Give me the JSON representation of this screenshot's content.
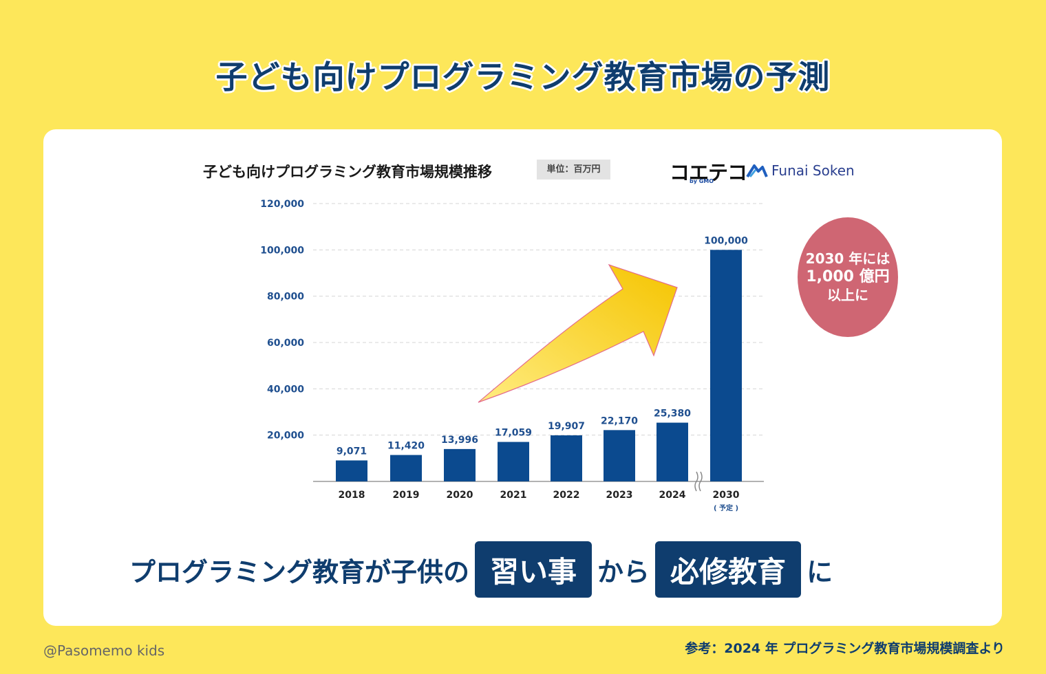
{
  "main_title": "子ども向けプログラミング教育市場の予測",
  "chart_title": "子ども向けプログラミング教育市場規模推移",
  "unit_label": "単位：百万円",
  "logos": {
    "koetechi": "コエテコ",
    "koetechi_sub": "by GMO",
    "funai": "Funai Soken"
  },
  "badge": {
    "line1": "2030 年には",
    "line2": "1,000 億円",
    "line3": "以上に"
  },
  "headline": {
    "part1": "プログラミング教育が子供の",
    "box1": "習い事",
    "part2": "から",
    "box2": "必修教育",
    "part3": "に"
  },
  "footer": {
    "credit": "@Pasomemo kids",
    "source": "参考：2024 年 プログラミング教育市場規模調査より"
  },
  "chart_data": {
    "type": "bar",
    "categories": [
      "2018",
      "2019",
      "2020",
      "2021",
      "2022",
      "2023",
      "2024",
      "2030"
    ],
    "category_notes": [
      "",
      "",
      "",
      "",
      "",
      "",
      "",
      "( 予定 )"
    ],
    "values": [
      9071,
      11420,
      13996,
      17059,
      19907,
      22170,
      25380,
      100000
    ],
    "value_labels": [
      "9,071",
      "11,420",
      "13,996",
      "17,059",
      "19,907",
      "22,170",
      "25,380",
      "100,000"
    ],
    "yticks": [
      20000,
      40000,
      60000,
      80000,
      100000,
      120000
    ],
    "ytick_labels": [
      "20,000",
      "40,000",
      "60,000",
      "80,000",
      "100,000",
      "120,000"
    ],
    "ylim": [
      0,
      120000
    ],
    "axis_break_between": [
      "2024",
      "2030"
    ],
    "grid": true,
    "bar_color": "#0b4a8f",
    "arrow_color": "#f5c400",
    "accent_color": "#0f3d6e"
  }
}
